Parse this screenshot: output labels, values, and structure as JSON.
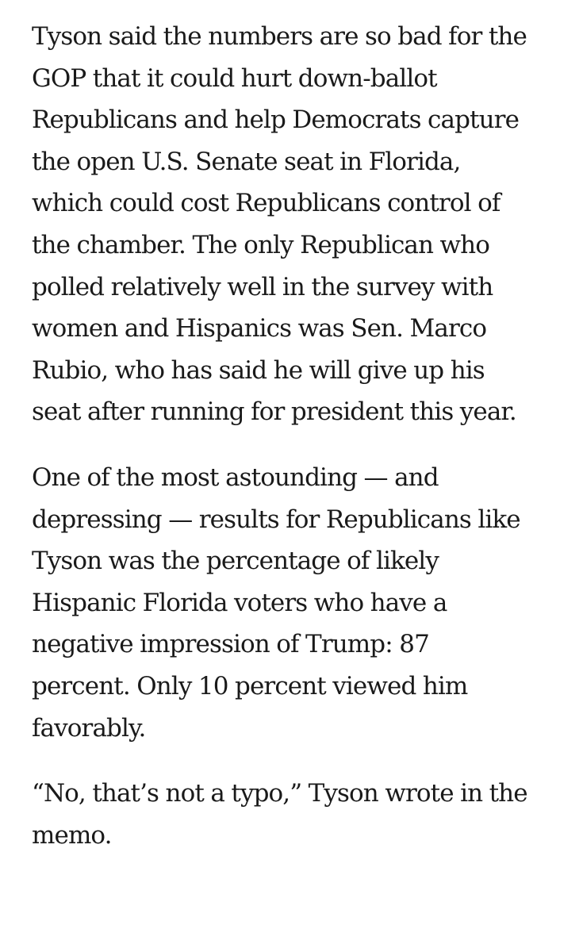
{
  "article": {
    "paragraphs": [
      "Tyson said the numbers are so bad for the\nGOP that it could hurt down-ballot\nRepublicans and help Democrats capture\nthe open U.S. Senate seat in Florida,\nwhich could cost Republicans control of\nthe chamber. The only Republican who\npolled relatively well in the survey with\nwomen and Hispanics was Sen. Marco\nRubio, who has said he will give up his\nseat after running for president this year.",
      "One of the most astounding — and\ndepressing — results for Republicans like\nTyson was the percentage of likely\nHispanic Florida voters who have a\nnegative impression of Trump: 87\npercent. Only 10 percent viewed him\nfavorably.",
      "“No, that’s not a typo,” Tyson wrote in the\nmemo."
    ]
  }
}
